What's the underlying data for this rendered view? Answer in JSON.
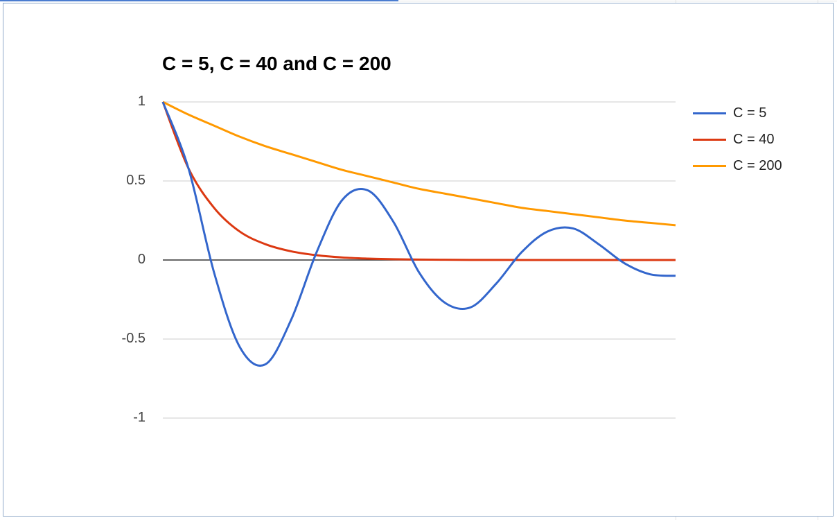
{
  "chart_data": {
    "type": "line",
    "title": "C = 5, C = 40 and C = 200",
    "xlabel": "",
    "ylabel": "",
    "ylim": [
      -1,
      1
    ],
    "yticks": [
      "1",
      "0.5",
      "0",
      "-0.5",
      "-1"
    ],
    "grid": true,
    "legend_position": "right",
    "x": [
      0,
      0.05,
      0.1,
      0.15,
      0.2,
      0.25,
      0.3,
      0.35,
      0.4,
      0.45,
      0.5,
      0.55,
      0.6,
      0.65,
      0.7,
      0.75,
      0.8,
      0.85,
      0.9,
      0.95,
      1
    ],
    "series": [
      {
        "name": "C = 5",
        "color": "#3366cc",
        "values": [
          1,
          0.58,
          -0.08,
          -0.55,
          -0.66,
          -0.38,
          0.05,
          0.38,
          0.44,
          0.24,
          -0.08,
          -0.27,
          -0.3,
          -0.15,
          0.05,
          0.18,
          0.2,
          0.1,
          -0.02,
          -0.09,
          -0.1
        ]
      },
      {
        "name": "C = 40",
        "color": "#dc3912",
        "values": [
          1,
          0.58,
          0.33,
          0.18,
          0.1,
          0.055,
          0.03,
          0.016,
          0.009,
          0.005,
          0.003,
          0.0015,
          0.0008,
          0.0005,
          0.0002,
          0.0001,
          0.0001,
          0,
          0,
          0,
          0
        ]
      },
      {
        "name": "C = 200",
        "color": "#ff9900",
        "values": [
          1,
          0.92,
          0.85,
          0.78,
          0.72,
          0.67,
          0.62,
          0.57,
          0.53,
          0.49,
          0.45,
          0.42,
          0.39,
          0.36,
          0.33,
          0.31,
          0.29,
          0.27,
          0.25,
          0.235,
          0.22
        ]
      }
    ]
  }
}
